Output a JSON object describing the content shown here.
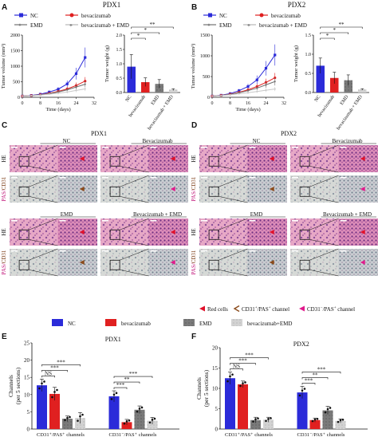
{
  "panels": {
    "A": "A",
    "B": "B",
    "C": "C",
    "D": "D",
    "E": "E",
    "F": "F"
  },
  "colors": {
    "nc": "#2b2bd9",
    "bev": "#e02020",
    "emd": "#6e6e6e",
    "combo": "#c8c8c8",
    "arrow_red": "#e0102a",
    "arrow_brown": "#8a4a1a",
    "arrow_pink": "#e01a8c"
  },
  "growth_legend": {
    "nc": "NC",
    "bev": "bevacizumab",
    "emd": "EMD",
    "combo": "bevacizumab + EMD"
  },
  "pdx1_growth": {
    "title": "PDX1",
    "ylabel": "Tumor volume (mm³)",
    "xlabel": "Time (days)",
    "xticks": [
      "0",
      "8",
      "16",
      "24",
      "32"
    ],
    "yticks": [
      "0",
      "500",
      "1000",
      "1500",
      "2000"
    ],
    "chart_data": {
      "type": "line",
      "x": [
        0,
        4,
        8,
        12,
        16,
        20,
        24,
        28
      ],
      "ylim": [
        0,
        2000
      ],
      "xlim": [
        0,
        32
      ],
      "series": [
        {
          "name": "NC",
          "values": [
            40,
            60,
            100,
            170,
            260,
            430,
            760,
            1280
          ]
        },
        {
          "name": "bevacizumab",
          "values": [
            40,
            55,
            85,
            130,
            190,
            270,
            380,
            520
          ]
        },
        {
          "name": "EMD",
          "values": [
            40,
            55,
            80,
            120,
            170,
            240,
            330,
            420
          ]
        },
        {
          "name": "bevacizumab + EMD",
          "values": [
            40,
            50,
            70,
            100,
            130,
            170,
            220,
            270
          ]
        }
      ]
    }
  },
  "pdx1_weight": {
    "ylabel": "Tumor weight (g)",
    "yticks": [
      "0.0",
      "0.5",
      "1.0",
      "1.5",
      "2.0"
    ],
    "categories": [
      "NC",
      "bevacizumab",
      "EMD",
      "bevacizumab + EMD"
    ],
    "sig": [
      "*",
      "*",
      "**"
    ],
    "chart_data": {
      "type": "bar",
      "values": [
        0.9,
        0.36,
        0.3,
        0.1
      ],
      "errors": [
        0.42,
        0.15,
        0.15,
        0.03
      ],
      "ylim": [
        0,
        2
      ]
    }
  },
  "pdx2_growth": {
    "title": "PDX2",
    "ylabel": "Tumor volume (mm³)",
    "xlabel": "Time (days)",
    "xticks": [
      "0",
      "8",
      "16",
      "24",
      "32"
    ],
    "yticks": [
      "0",
      "500",
      "1000",
      "1500"
    ],
    "chart_data": {
      "type": "line",
      "x": [
        0,
        4,
        8,
        12,
        16,
        20,
        24,
        28
      ],
      "ylim": [
        0,
        1500
      ],
      "xlim": [
        0,
        32
      ],
      "series": [
        {
          "name": "NC",
          "values": [
            30,
            50,
            90,
            160,
            260,
            420,
            700,
            1020
          ]
        },
        {
          "name": "bevacizumab",
          "values": [
            30,
            45,
            75,
            120,
            180,
            260,
            360,
            470
          ]
        },
        {
          "name": "EMD",
          "values": [
            30,
            45,
            70,
            110,
            160,
            220,
            300,
            380
          ]
        },
        {
          "name": "bevacizumab + EMD",
          "values": [
            30,
            40,
            60,
            85,
            110,
            140,
            170,
            200
          ]
        }
      ]
    }
  },
  "pdx2_weight": {
    "ylabel": "Tumor weight (g)",
    "yticks": [
      "0.0",
      "0.5",
      "1.0",
      "1.5"
    ],
    "categories": [
      "NC",
      "bevacizumab",
      "EMD",
      "bevacizumab + EMD"
    ],
    "sig": [
      "*",
      "*",
      "**"
    ],
    "chart_data": {
      "type": "bar",
      "values": [
        0.7,
        0.38,
        0.32,
        0.08
      ],
      "errors": [
        0.2,
        0.15,
        0.14,
        0.02
      ],
      "ylim": [
        0,
        1.5
      ]
    }
  },
  "histo": {
    "C": {
      "title": "PDX1",
      "top_left": "NC",
      "top_right": "Bevacizumab",
      "bottom_left": "EMD",
      "bottom_right": "Bevacizumab + EMD"
    },
    "D": {
      "title": "PDX2",
      "top_left": "NC",
      "top_right": "Bevacizumab",
      "bottom_left": "EMD",
      "bottom_right": "Bevacizumab + EMD"
    },
    "row_he": "HE",
    "row_pas1": "PAS/",
    "row_pas2": "CD31",
    "legend": {
      "red": "Red cells",
      "brown_pre": "CD31",
      "brown_sup1": "+",
      "brown_mid": "/PAS",
      "brown_sup2": "+",
      "brown_post": " channel",
      "pink_pre": "CD31",
      "pink_sup1": "−",
      "pink_mid": "/PAS",
      "pink_sup2": "+",
      "pink_post": " channel"
    }
  },
  "channels_legend": {
    "nc": "NC",
    "bev": "bevacizumab",
    "emd": "EMD",
    "combo": "bevacizumab+EMD"
  },
  "channels_E": {
    "title": "PDX1",
    "ylabel1": "Channels",
    "ylabel2": "(per 5 sections)",
    "yticks": [
      "0",
      "5",
      "10",
      "15",
      "20",
      "25"
    ],
    "group1": "CD31⁺/PAS⁺ channels",
    "group2": "CD31⁻/PAS⁺ channels",
    "sig_g1": [
      "NS",
      "***",
      "***"
    ],
    "sig_g2": [
      "***",
      "**",
      "***"
    ],
    "chart_data": {
      "type": "bar",
      "categories": [
        "CD31+/PAS+ channels",
        "CD31-/PAS+ channels"
      ],
      "ylim": [
        0,
        25
      ],
      "series": [
        {
          "name": "NC",
          "values": [
            12.7,
            9.5
          ],
          "errors": [
            1.8,
            1.6
          ]
        },
        {
          "name": "bevacizumab",
          "values": [
            10.2,
            2.0
          ],
          "errors": [
            1.9,
            0.8
          ]
        },
        {
          "name": "EMD",
          "values": [
            3.0,
            5.6
          ],
          "errors": [
            0.8,
            1.1
          ]
        },
        {
          "name": "bevacizumab+EMD",
          "values": [
            3.2,
            2.4
          ],
          "errors": [
            1.6,
            1.0
          ]
        }
      ]
    }
  },
  "channels_F": {
    "title": "PDX2",
    "ylabel1": "Channels",
    "ylabel2": "(per 5 sections)",
    "yticks": [
      "0",
      "5",
      "10",
      "15",
      "20"
    ],
    "group1": "CD31⁺/PAS⁺ channels",
    "group2": "CD31⁻/PAS⁺ channels",
    "sig_g1": [
      "NS",
      "***",
      "***"
    ],
    "sig_g2": [
      "***",
      "**",
      "***"
    ],
    "chart_data": {
      "type": "bar",
      "categories": [
        "CD31+/PAS+ channels",
        "CD31-/PAS+ channels"
      ],
      "ylim": [
        0,
        20
      ],
      "series": [
        {
          "name": "NC",
          "values": [
            12.5,
            9.0
          ],
          "errors": [
            1.5,
            1.5
          ]
        },
        {
          "name": "bevacizumab",
          "values": [
            11.0,
            2.2
          ],
          "errors": [
            0.8,
            0.5
          ]
        },
        {
          "name": "EMD",
          "values": [
            2.2,
            4.6
          ],
          "errors": [
            0.7,
            1.0
          ]
        },
        {
          "name": "bevacizumab+EMD",
          "values": [
            2.3,
            2.0
          ],
          "errors": [
            0.6,
            0.5
          ]
        }
      ]
    }
  }
}
